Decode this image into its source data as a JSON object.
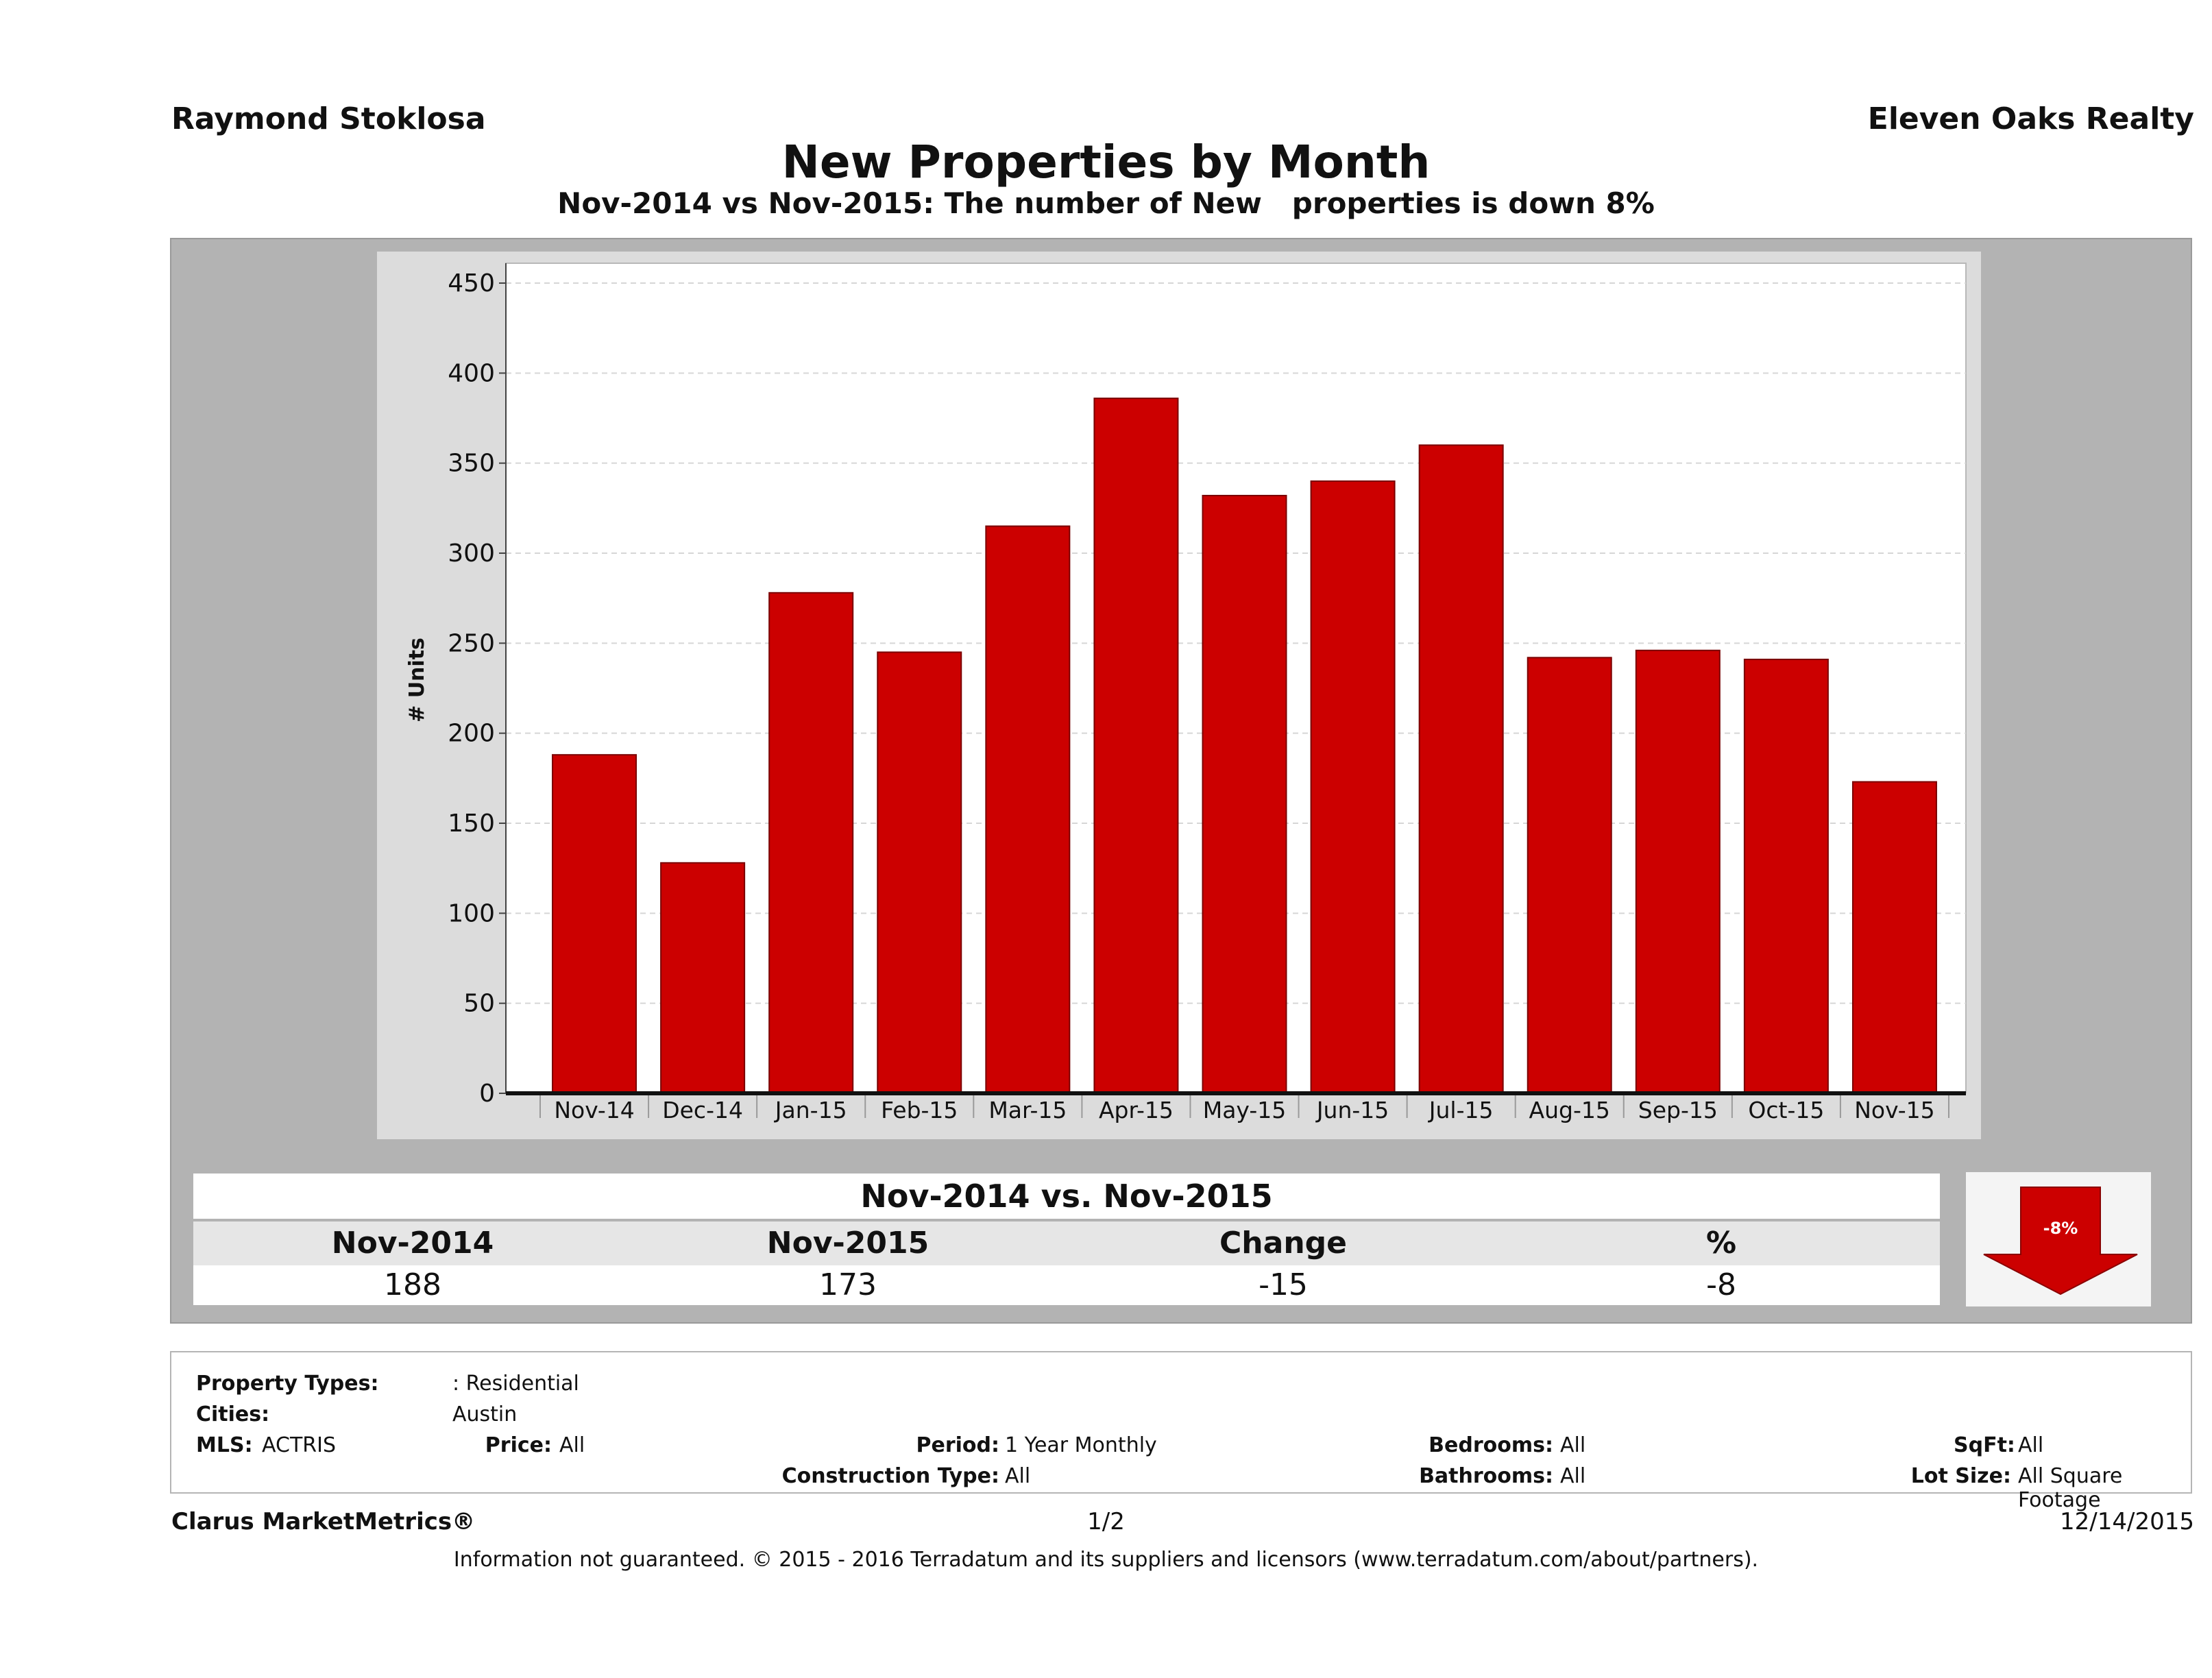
{
  "header": {
    "agent": "Raymond Stoklosa",
    "brokerage": "Eleven Oaks Realty",
    "title": "New Properties by Month",
    "subtitle": "Nov-2014 vs Nov-2015: The number of New   properties is down 8%"
  },
  "chart_data": {
    "type": "bar",
    "ylabel": "# Units",
    "xlabel": "",
    "ylim": [
      0,
      450
    ],
    "yticks": [
      0,
      50,
      100,
      150,
      200,
      250,
      300,
      350,
      400,
      450
    ],
    "categories": [
      "Nov-14",
      "Dec-14",
      "Jan-15",
      "Feb-15",
      "Mar-15",
      "Apr-15",
      "May-15",
      "Jun-15",
      "Jul-15",
      "Aug-15",
      "Sep-15",
      "Oct-15",
      "Nov-15"
    ],
    "values": [
      188,
      128,
      278,
      245,
      315,
      386,
      332,
      340,
      360,
      242,
      246,
      241,
      173
    ],
    "bar_color": "#cc0000",
    "grid": true
  },
  "comparison": {
    "title": "Nov-2014 vs. Nov-2015",
    "labels": [
      "Nov-2014",
      "Nov-2015",
      "Change",
      "%"
    ],
    "values": [
      "188",
      "173",
      "-15",
      "-8"
    ],
    "badge": "-8%"
  },
  "filters": {
    "property_types_label": "Property Types:",
    "property_types_value": ": Residential",
    "cities_label": "Cities:",
    "cities_value": "Austin",
    "mls_label": "MLS:",
    "mls_value": "ACTRIS",
    "price_label": "Price:",
    "price_value": "All",
    "period_label": "Period:",
    "period_value": "1 Year Monthly",
    "construction_label": "Construction Type:",
    "construction_value": "All",
    "bedrooms_label": "Bedrooms:",
    "bedrooms_value": "All",
    "bathrooms_label": "Bathrooms:",
    "bathrooms_value": "All",
    "sqft_label": "SqFt:",
    "sqft_value": "All",
    "lotsize_label": "Lot Size:",
    "lotsize_value": "All Square Footage"
  },
  "footer": {
    "brand": "Clarus MarketMetrics®",
    "page": "1/2",
    "date": "12/14/2015",
    "disclaimer": "Information not guaranteed. © 2015 - 2016 Terradatum and its suppliers and licensors (www.terradatum.com/about/partners)."
  }
}
